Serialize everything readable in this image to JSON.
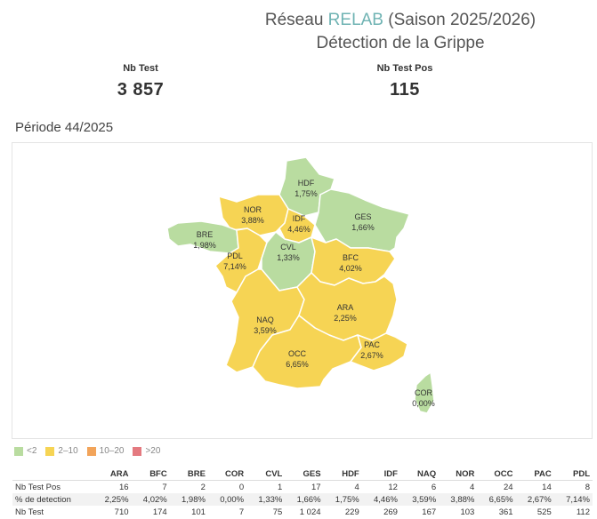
{
  "header": {
    "title_prefix": "Réseau ",
    "title_accent": "RELAB",
    "title_suffix": " (Saison 2025/2026)",
    "subtitle": "Détection de la Grippe",
    "accent_color": "#6fb3b3"
  },
  "kpis": {
    "nb_test_label": "Nb Test",
    "nb_test_value": "3 857",
    "nb_test_pos_label": "Nb Test Pos",
    "nb_test_pos_value": "115"
  },
  "periode": "Période 44/2025",
  "colors": {
    "lt2": "#b9dca0",
    "2to10": "#f6d454",
    "10to20": "#f2a45a",
    "gt20": "#e47a80"
  },
  "legend": [
    {
      "label": "<2",
      "color": "#b9dca0"
    },
    {
      "label": "2–10",
      "color": "#f6d454"
    },
    {
      "label": "10–20",
      "color": "#f2a45a"
    },
    {
      "label": ">20",
      "color": "#e47a80"
    }
  ],
  "map_regions": [
    {
      "code": "HDF",
      "pct": "1,75%",
      "category": "<2"
    },
    {
      "code": "NOR",
      "pct": "3,88%",
      "category": "2–10"
    },
    {
      "code": "IDF",
      "pct": "4,46%",
      "category": "2–10"
    },
    {
      "code": "GES",
      "pct": "1,66%",
      "category": "<2"
    },
    {
      "code": "BRE",
      "pct": "1,98%",
      "category": "<2"
    },
    {
      "code": "PDL",
      "pct": "7,14%",
      "category": "2–10"
    },
    {
      "code": "CVL",
      "pct": "1,33%",
      "category": "<2"
    },
    {
      "code": "BFC",
      "pct": "4,02%",
      "category": "2–10"
    },
    {
      "code": "NAQ",
      "pct": "3,59%",
      "category": "2–10"
    },
    {
      "code": "ARA",
      "pct": "2,25%",
      "category": "2–10"
    },
    {
      "code": "OCC",
      "pct": "6,65%",
      "category": "2–10"
    },
    {
      "code": "PAC",
      "pct": "2,67%",
      "category": "2–10"
    },
    {
      "code": "COR",
      "pct": "0,00%",
      "category": "<2"
    }
  ],
  "table": {
    "columns": [
      "ARA",
      "BFC",
      "BRE",
      "COR",
      "CVL",
      "GES",
      "HDF",
      "IDF",
      "NAQ",
      "NOR",
      "OCC",
      "PAC",
      "PDL"
    ],
    "rows": [
      {
        "label": "Nb Test Pos",
        "values": [
          "16",
          "7",
          "2",
          "0",
          "1",
          "17",
          "4",
          "12",
          "6",
          "4",
          "24",
          "14",
          "8"
        ]
      },
      {
        "label": "% de detection",
        "values": [
          "2,25%",
          "4,02%",
          "1,98%",
          "0,00%",
          "1,33%",
          "1,66%",
          "1,75%",
          "4,46%",
          "3,59%",
          "3,88%",
          "6,65%",
          "2,67%",
          "7,14%"
        ]
      },
      {
        "label": "Nb Test",
        "values": [
          "710",
          "174",
          "101",
          "7",
          "75",
          "1 024",
          "229",
          "269",
          "167",
          "103",
          "361",
          "525",
          "112"
        ]
      }
    ]
  }
}
